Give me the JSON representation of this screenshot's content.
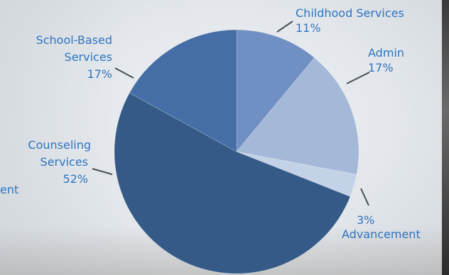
{
  "chart_data": {
    "type": "pie",
    "slices": [
      {
        "label": "Childhood Services",
        "value": 11,
        "display": "11%",
        "color": "#7090c3"
      },
      {
        "label": "Admin",
        "value": 17,
        "display": "17%",
        "color": "#a4b8d8"
      },
      {
        "label": "Advancement",
        "value": 3,
        "display": "3%",
        "color": "#c4d2e8"
      },
      {
        "label": "Counseling Services",
        "value": 52,
        "display": "52%",
        "color": "#355a88"
      },
      {
        "label": "School-Based Services",
        "value": 17,
        "display": "17%",
        "color": "#446ea5"
      }
    ],
    "clipped_label_fragment": "ent"
  }
}
